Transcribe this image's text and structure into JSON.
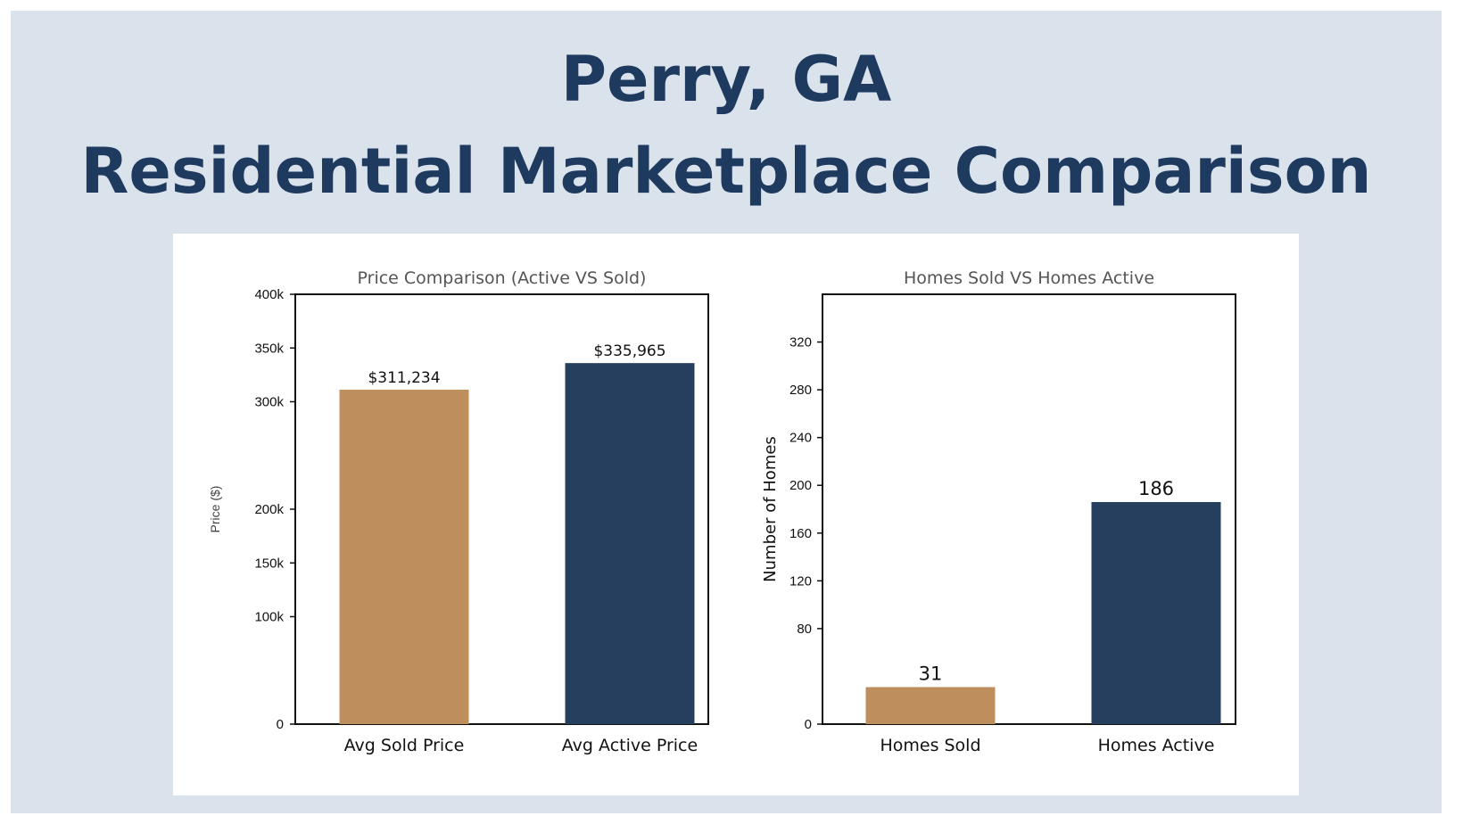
{
  "header": {
    "line1": "Perry, GA",
    "line2": "Residential Marketplace Comparison"
  },
  "colors": {
    "background": "#dae2ec",
    "title": "#1f3a5f",
    "sold": "#be8f5d",
    "active": "#263f5f"
  },
  "chart_data": [
    {
      "type": "bar",
      "title": "Price Comparison (Active VS Sold)",
      "xlabel": "",
      "ylabel": "Price ($)",
      "categories": [
        "Avg Sold Price",
        "Avg Active Price"
      ],
      "values": [
        311234,
        335965
      ],
      "value_labels": [
        "$311,234",
        "$335,965"
      ],
      "yticks": [
        0,
        100000,
        150000,
        200000,
        300000,
        350000,
        400000
      ],
      "ytick_labels": [
        "0",
        "100k",
        "150k",
        "200k",
        "300k",
        "350k",
        "400k"
      ],
      "ylim": [
        0,
        400000
      ],
      "grid": false
    },
    {
      "type": "bar",
      "title": "Homes Sold VS Homes Active",
      "xlabel": "",
      "ylabel": "Number of Homes",
      "categories": [
        "Homes Sold",
        "Homes Active"
      ],
      "values": [
        31,
        186
      ],
      "value_labels": [
        "31",
        "186"
      ],
      "yticks": [
        0,
        80,
        120,
        160,
        200,
        240,
        280,
        320
      ],
      "ytick_labels": [
        "0",
        "80",
        "120",
        "160",
        "200",
        "240",
        "280",
        "320"
      ],
      "ylim": [
        0,
        360
      ],
      "grid": false
    }
  ]
}
